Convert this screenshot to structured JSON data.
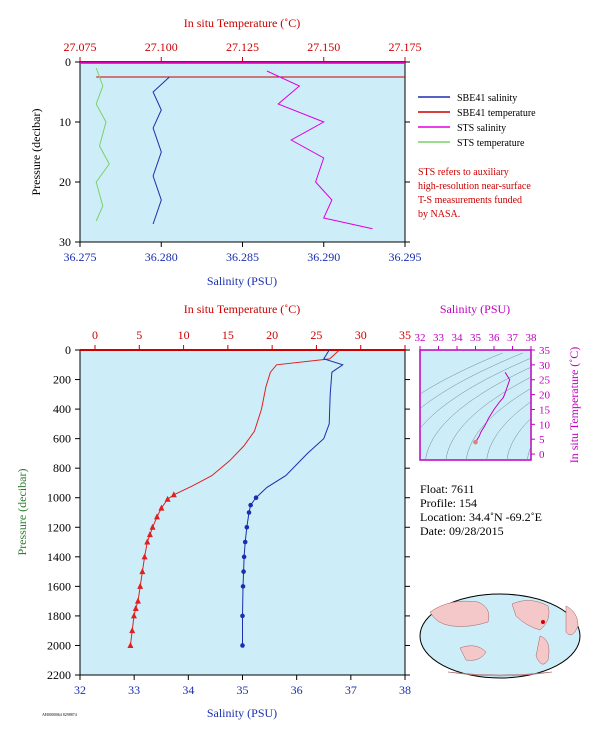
{
  "top_chart": {
    "top_axis_title": "In situ Temperature (˚C)",
    "bottom_axis_title": "Salinity (PSU)",
    "y_axis_title": "Pressure (decibar)",
    "top_ticks": [
      "27.075",
      "27.100",
      "27.125",
      "27.150",
      "27.175"
    ],
    "bottom_ticks": [
      "36.275",
      "36.280",
      "36.285",
      "36.290",
      "36.295"
    ],
    "y_ticks": [
      "0",
      "10",
      "20",
      "30"
    ],
    "legend": [
      {
        "label": "SBE41 salinity",
        "color": "#1a2fb0"
      },
      {
        "label": "SBE41 temperature",
        "color": "#cc0000"
      },
      {
        "label": "STS salinity",
        "color": "#e000e0"
      },
      {
        "label": "STS temperature",
        "color": "#7ccf6a"
      }
    ],
    "note_lines": [
      "STS refers to auxiliary",
      "high-resolution near-surface",
      "T-S measurements funded",
      "by NASA."
    ]
  },
  "main_chart": {
    "top_axis_title": "In situ Temperature (˚C)",
    "bottom_axis_title": "Salinity (PSU)",
    "y_axis_title": "Pressure (decibar)",
    "top_ticks": [
      "0",
      "5",
      "10",
      "15",
      "20",
      "25",
      "30",
      "35"
    ],
    "bottom_ticks": [
      "32",
      "33",
      "34",
      "35",
      "36",
      "37",
      "38"
    ],
    "y_ticks": [
      "0",
      "200",
      "400",
      "600",
      "800",
      "1000",
      "1200",
      "1400",
      "1600",
      "1800",
      "2000",
      "2200"
    ],
    "footer_code": "AH0000064 8298874"
  },
  "ts_chart": {
    "top_axis_title": "Salinity (PSU)",
    "right_axis_title": "In situ Temperature (˚C)",
    "top_ticks": [
      "32",
      "33",
      "34",
      "35",
      "36",
      "37",
      "38"
    ],
    "right_ticks": [
      "35",
      "30",
      "25",
      "20",
      "15",
      "10",
      "5",
      "0"
    ]
  },
  "info": {
    "float": "Float:  7611",
    "profile": "Profile:  154",
    "location": "Location:  34.4˚N  -69.2˚E",
    "date": "Date:  09/28/2015"
  },
  "chart_data": [
    {
      "type": "line",
      "title": "",
      "xlabel": "Salinity (PSU)",
      "x2label": "In situ Temperature (˚C)",
      "ylabel": "Pressure (decibar)",
      "xlim": [
        36.275,
        36.295
      ],
      "x2lim": [
        27.075,
        27.175
      ],
      "ylim": [
        30,
        0
      ],
      "series": [
        {
          "name": "SBE41 salinity",
          "axis": "salinity",
          "x": [
            36.2805,
            36.2795,
            36.28,
            36.2795,
            36.28,
            36.2795,
            36.28,
            36.2795
          ],
          "y": [
            2.5,
            5,
            8,
            11,
            15,
            19,
            23,
            27
          ]
        },
        {
          "name": "SBE41 temperature",
          "axis": "temperature",
          "x": [
            27.08,
            27.18
          ],
          "y": [
            2.5,
            2.5
          ]
        },
        {
          "name": "STS salinity",
          "axis": "salinity",
          "x": [
            36.2865,
            36.2885,
            36.2872,
            36.29,
            36.288,
            36.29,
            36.2895,
            36.2905,
            36.29,
            36.293
          ],
          "y": [
            1.5,
            4,
            7,
            10,
            13,
            16,
            20,
            23,
            26,
            27.8
          ]
        },
        {
          "name": "STS temperature",
          "axis": "temperature",
          "x": [
            27.08,
            27.082,
            27.08,
            27.083,
            27.081,
            27.084,
            27.08,
            27.082,
            27.08
          ],
          "y": [
            1,
            4,
            7,
            10,
            14,
            17,
            20,
            24,
            26.5
          ]
        }
      ]
    },
    {
      "type": "line",
      "title": "",
      "xlabel": "Salinity (PSU)",
      "x2label": "In situ Temperature (˚C)",
      "ylabel": "Pressure (decibar)",
      "xlim": [
        32,
        38
      ],
      "x2lim": [
        0,
        35
      ],
      "ylim": [
        2200,
        0
      ],
      "series": [
        {
          "name": "Temperature",
          "axis": "temperature",
          "markers": "triangle",
          "x": [
            27.5,
            26.5,
            20.5,
            19.8,
            19.3,
            18.8,
            18.0,
            16.8,
            15.2,
            13.2,
            11.0,
            8.9,
            8.2,
            7.5,
            7.0,
            6.5,
            6.2,
            5.9,
            5.6,
            5.35,
            5.1,
            4.85,
            4.6,
            4.4,
            4.2,
            4.0
          ],
          "y": [
            5,
            60,
            100,
            150,
            250,
            400,
            550,
            650,
            750,
            850,
            920,
            980,
            1010,
            1070,
            1130,
            1200,
            1250,
            1300,
            1400,
            1500,
            1600,
            1700,
            1750,
            1800,
            1900,
            2000
          ]
        },
        {
          "name": "Salinity",
          "axis": "salinity",
          "markers": "circle",
          "x": [
            36.6,
            36.5,
            36.85,
            36.65,
            36.62,
            36.6,
            36.5,
            36.2,
            35.8,
            35.45,
            35.25,
            35.15,
            35.12,
            35.08,
            35.05,
            35.03,
            35.02,
            35.01,
            35.0,
            35.0
          ],
          "y": [
            0,
            60,
            100,
            150,
            300,
            500,
            600,
            700,
            850,
            930,
            1000,
            1050,
            1100,
            1200,
            1300,
            1400,
            1500,
            1600,
            1800,
            2000
          ]
        }
      ]
    },
    {
      "type": "line",
      "title": "",
      "xlabel": "Salinity (PSU)",
      "ylabel": "In situ Temperature (˚C)",
      "xlim": [
        32,
        38
      ],
      "ylim": [
        -2,
        35
      ],
      "series": [
        {
          "name": "",
          "markers": "circle",
          "x": [
            36.6,
            36.85,
            36.6,
            36.5,
            36.3,
            36.0,
            35.7,
            35.5,
            35.3,
            35.2,
            35.05,
            35.0
          ],
          "y": [
            27.5,
            25,
            20.5,
            19,
            17.5,
            15,
            12,
            9.5,
            7.5,
            6.0,
            4.5,
            4.0
          ]
        }
      ]
    }
  ]
}
